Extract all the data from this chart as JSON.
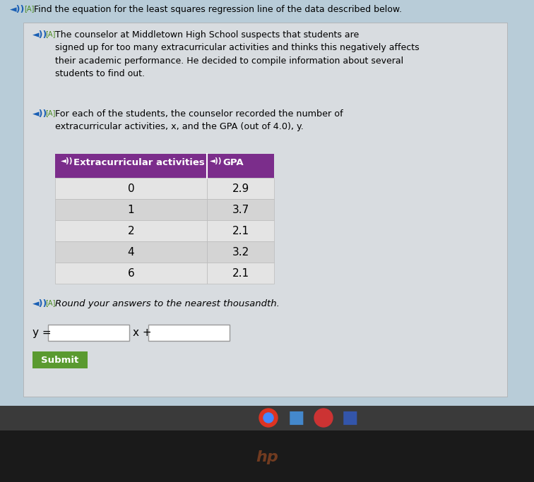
{
  "title_line": "Find the equation for the least squares regression line of the data described below.",
  "paragraph1": "The counselor at Middletown High School suspects that students are\nsigned up for too many extracurricular activities and thinks this negatively affects\ntheir academic performance. He decided to compile information about several\nstudents to find out.",
  "paragraph2": "For each of the students, the counselor recorded the number of\nextracurricular activities, x, and the GPA (out of 4.0), y.",
  "table_header": [
    "Extracurricular activities",
    "GPA"
  ],
  "table_data": [
    [
      0,
      2.9
    ],
    [
      1,
      3.7
    ],
    [
      2,
      2.1
    ],
    [
      4,
      3.2
    ],
    [
      6,
      2.1
    ]
  ],
  "round_text": "Round your answers to the nearest thousandth.",
  "equation_label": "y =",
  "equation_mid": "x +",
  "submit_text": "Submit",
  "bg_color_top": "#b8ccd8",
  "card_bg": "#d8dce0",
  "table_header_bg": "#7b2d8b",
  "table_row_bg1": "#e4e4e4",
  "table_row_bg2": "#d4d4d4",
  "submit_bg": "#5a9a30",
  "text_color": "#000000",
  "header_text_color": "#ffffff",
  "taskbar_bg": "#3a3a3a",
  "screen_bottom_bg": "#1a1a1a",
  "speaker_color": "#1a5fb4",
  "icon_color": "#4a8a20"
}
